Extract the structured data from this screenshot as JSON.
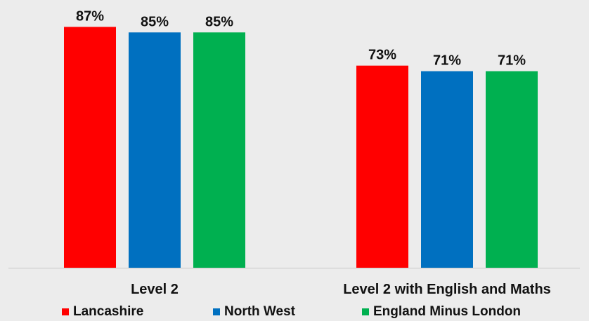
{
  "chart_data": {
    "type": "bar",
    "categories": [
      "Level 2",
      "Level 2 with English and Maths"
    ],
    "series": [
      {
        "name": "Lancashire",
        "values": [
          87,
          73
        ],
        "labels": [
          "87%",
          "73%"
        ],
        "color": "#ff0000"
      },
      {
        "name": "North West",
        "values": [
          85,
          71
        ],
        "labels": [
          "85%",
          "71%"
        ],
        "color": "#0070c0"
      },
      {
        "name": "England Minus London",
        "values": [
          85,
          71
        ],
        "labels": [
          "85%",
          "71%"
        ],
        "color": "#00b050"
      }
    ],
    "ylim": [
      0,
      100
    ],
    "grid": false,
    "legend_position": "bottom",
    "value_unit": "%",
    "title": "",
    "xlabel": "",
    "ylabel": ""
  },
  "colors": {
    "background": "#ececec",
    "axis": "#c8c8c8"
  }
}
